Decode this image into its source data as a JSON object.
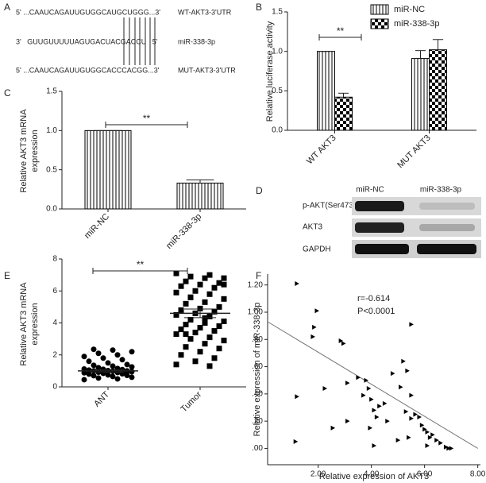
{
  "sequences": {
    "panel": "A",
    "rows": [
      {
        "text": "5' ...CAAUCAGAUUGUGGCAUGCUGGG...3'",
        "name": "WT-AKT3-3'UTR"
      },
      {
        "text": "3'   GUUGUUUUUAGUGACUACGACCU   5'",
        "name": "miR-338-3p"
      },
      {
        "text": "5' ...CAAUCAGAUUGUGGCACCCACGG...3'",
        "name": "MUT-AKT3-3'UTR"
      }
    ]
  },
  "blot": {
    "panel": "D",
    "lanes": [
      "miR-NC",
      "miR-338-3p"
    ],
    "rows": [
      "p-AKT(Ser473)",
      "AKT3",
      "GAPDH"
    ]
  },
  "chart_data": [
    {
      "type": "bar",
      "panel": "B",
      "ylabel": [
        "Relative luciferase activity"
      ],
      "categories": [
        "WT AKT3",
        "MUT AKT3"
      ],
      "series": [
        {
          "name": "miR-NC",
          "color": "#000000",
          "pattern": "vertical-stripes",
          "values": [
            1.0,
            0.91
          ],
          "errors": [
            0,
            0.1
          ]
        },
        {
          "name": "miR-338-3p",
          "color": "#000000",
          "pattern": "checker",
          "values": [
            0.42,
            1.02
          ],
          "errors": [
            0.05,
            0.13
          ]
        }
      ],
      "ylim": [
        0,
        1.5
      ],
      "yticks": [
        {
          "value": 0,
          "label": "0.0"
        },
        0.5,
        {
          "value": 1,
          "label": "1.0"
        },
        1.5
      ],
      "annotation": "**"
    },
    {
      "type": "bar",
      "panel": "C",
      "ylabel": [
        "Relative AKT3 mRNA",
        "expression"
      ],
      "categories": [
        "miR-NC",
        "miR-338-3p"
      ],
      "values": [
        1.0,
        0.33
      ],
      "errors": [
        0,
        0.04
      ],
      "pattern": "vertical-stripes",
      "color": "#000000",
      "ylim": [
        0,
        1.5
      ],
      "yticks": [
        {
          "value": 0,
          "label": "0.0"
        },
        0.5,
        {
          "value": 1,
          "label": "1.0"
        },
        1.5
      ],
      "annotation": "**"
    },
    {
      "type": "strip",
      "panel": "E",
      "ylabel": [
        "Relative AKT3 mRNA",
        "expression"
      ],
      "categories": [
        "ANT",
        "Tumor"
      ],
      "markers": [
        "circle",
        "square"
      ],
      "values": [
        [
          0.45,
          0.5,
          0.55,
          0.6,
          0.65,
          0.7,
          0.72,
          0.75,
          0.8,
          0.82,
          0.85,
          0.88,
          0.9,
          0.92,
          0.95,
          0.98,
          1.0,
          1.0,
          1.02,
          1.05,
          1.08,
          1.1,
          1.12,
          1.15,
          1.2,
          1.25,
          1.3,
          1.35,
          1.4,
          1.5,
          1.6,
          1.7,
          1.8,
          1.9,
          2.0,
          2.1,
          2.2,
          2.3,
          2.35,
          0.95
        ],
        [
          7.1,
          7.0,
          6.9,
          6.8,
          6.8,
          6.6,
          6.5,
          6.4,
          6.3,
          6.2,
          6.0,
          5.9,
          5.8,
          5.6,
          5.5,
          5.3,
          5.2,
          5.0,
          4.9,
          4.8,
          4.7,
          4.6,
          4.5,
          4.4,
          4.2,
          4.1,
          4.0,
          3.9,
          3.8,
          3.7,
          3.6,
          3.5,
          3.4,
          3.3,
          3.1,
          3.0,
          2.9,
          2.7,
          2.5,
          2.4,
          2.2,
          2.0,
          1.8,
          1.6,
          1.4,
          1.3,
          5.6,
          6.4,
          4.3,
          3.3
        ]
      ],
      "means": [
        1.0,
        4.6
      ],
      "errors": [
        0.08,
        0.27
      ],
      "color": "#000000",
      "ylim": [
        0,
        8
      ],
      "yticks": [
        0,
        2,
        4,
        6,
        8
      ],
      "annotation": "**"
    },
    {
      "type": "scatter",
      "panel": "F",
      "xlabel": "Relative expression of AKT3",
      "ylabel": [
        "Relative expression of miR-338-3p"
      ],
      "annotations": [
        "r=-0.614",
        "P<0.0001"
      ],
      "marker": "triangle-right",
      "color": "#000000",
      "line_color": "#777777",
      "x": [
        1.2,
        1.95,
        1.85,
        1.8,
        2.85,
        2.95,
        5.5,
        1.2,
        1.15,
        2.25,
        2.55,
        3.1,
        3.1,
        3.5,
        3.8,
        3.9,
        3.7,
        4.0,
        4.1,
        4.2,
        4.3,
        4.5,
        4.1,
        3.95,
        4.8,
        5.2,
        5.35,
        5.1,
        4.6,
        5.3,
        5.4,
        5.5,
        5.65,
        5.8,
        5.9,
        6.0,
        6.1,
        6.2,
        6.3,
        6.45,
        6.6,
        6.8,
        6.9,
        7.0,
        6.1,
        5.5,
        5.0
      ],
      "y": [
        1.21,
        1.01,
        0.89,
        0.82,
        0.79,
        0.77,
        0.91,
        0.38,
        0.05,
        0.44,
        0.15,
        0.48,
        0.2,
        0.52,
        0.5,
        0.44,
        0.39,
        0.36,
        0.28,
        0.23,
        0.31,
        0.33,
        0.02,
        0.15,
        0.55,
        0.64,
        0.57,
        0.45,
        0.2,
        0.27,
        0.08,
        0.22,
        0.25,
        0.23,
        0.17,
        0.14,
        0.12,
        0.08,
        0.1,
        0.06,
        0.04,
        0.01,
        0.0,
        0.0,
        0.02,
        0.39,
        0.06
      ],
      "trendline": {
        "x": [
          0.1,
          8.0
        ],
        "y": [
          0.93,
          0.0
        ]
      },
      "xlim": [
        0.1,
        8.1
      ],
      "xticks": [
        {
          "value": 2,
          "label": "2.00"
        },
        {
          "value": 4,
          "label": "4.00"
        },
        {
          "value": 6,
          "label": "6.00"
        },
        {
          "value": 8,
          "label": "8.00"
        }
      ],
      "ylim": [
        -0.12,
        1.28
      ],
      "yticks": [
        {
          "value": 0,
          "label": ".00"
        },
        {
          "value": 0.2,
          "label": ".20"
        },
        {
          "value": 0.4,
          "label": ".40"
        },
        {
          "value": 0.6,
          "label": ".60"
        },
        {
          "value": 0.8,
          "label": ".80"
        },
        {
          "value": 1.0,
          "label": "1.00"
        },
        {
          "value": 1.2,
          "label": "1.20"
        }
      ]
    }
  ]
}
